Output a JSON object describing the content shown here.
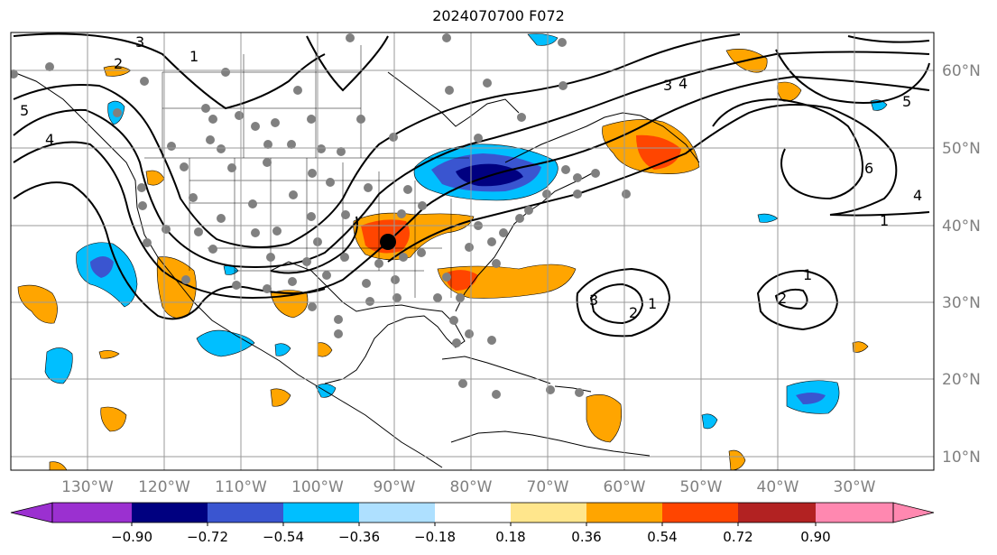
{
  "title": "2024070700 F072",
  "longitude_labels": [
    "130°W",
    "120°W",
    "110°W",
    "100°W",
    "90°W",
    "80°W",
    "70°W",
    "60°W",
    "50°W",
    "40°W",
    "30°W"
  ],
  "latitude_labels": [
    "60°N",
    "50°N",
    "40°N",
    "30°N",
    "20°N",
    "10°N"
  ],
  "colorbar": {
    "tick_labels": [
      "−0.90",
      "−0.72",
      "−0.54",
      "−0.36",
      "−0.18",
      "0.18",
      "0.36",
      "0.54",
      "0.72",
      "0.90"
    ],
    "colors": [
      "#9b30d0",
      "#000080",
      "#3a55d0",
      "#00bfff",
      "#aee0ff",
      "#ffffff",
      "#ffe68c",
      "#ffa500",
      "#ff4500",
      "#b22222",
      "#ff88b0"
    ]
  },
  "contour_labels": [
    "1",
    "2",
    "3",
    "4",
    "5",
    "6"
  ],
  "marker": "black-dot"
}
